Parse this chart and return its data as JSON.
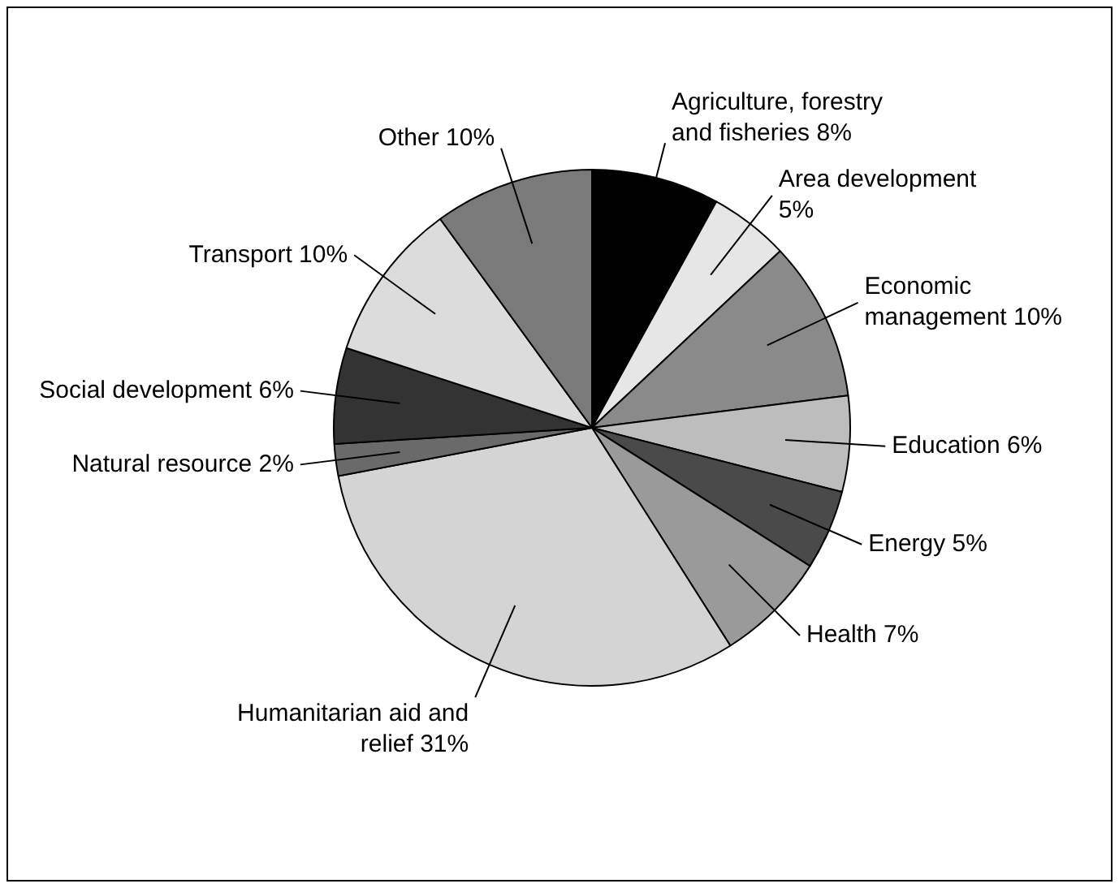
{
  "chart_data": {
    "type": "pie",
    "categories": [
      "Agriculture, forestry and fisheries",
      "Area development",
      "Economic management",
      "Education",
      "Energy",
      "Health",
      "Humanitarian aid and relief",
      "Natural resource",
      "Social development",
      "Transport",
      "Other"
    ],
    "values": [
      8,
      5,
      10,
      6,
      5,
      7,
      31,
      2,
      6,
      10,
      10
    ],
    "value_labels": [
      "8%",
      "5%",
      "10%",
      "6%",
      "5%",
      "7%",
      "31%",
      "2%",
      "6%",
      "10%",
      "10%"
    ],
    "colors": [
      "#000000",
      "#e6e6e6",
      "#8a8a8a",
      "#bdbdbd",
      "#4a4a4a",
      "#9a9a9a",
      "#d4d4d4",
      "#6a6a6a",
      "#333333",
      "#dcdcdc",
      "#7a7a7a"
    ],
    "legend": false
  }
}
